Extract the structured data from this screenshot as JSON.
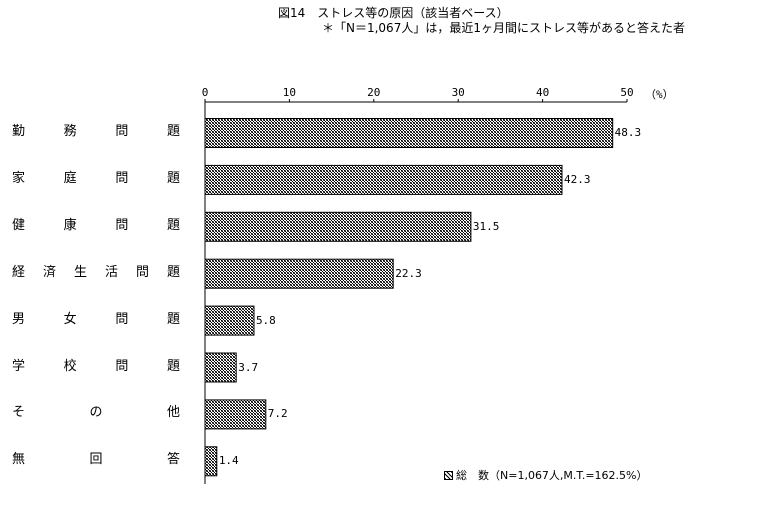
{
  "chart_data": {
    "type": "bar",
    "orientation": "horizontal",
    "title": "図14　ストレス等の原因（該当者ベース）",
    "subtitle": "＊「N＝1,067人」は，最近1ヶ月間にストレス等があると答えた者",
    "categories": [
      "勤務問題",
      "家庭問題",
      "健康問題",
      "経済生活問題",
      "男女問題",
      "学校問題",
      "その他",
      "無回答"
    ],
    "category_display": [
      "勤　務　問　題",
      "家　庭　問　題",
      "健　康　問　題",
      "経　済　生　活　問　題",
      "男　女　問　題",
      "学　校　問　題",
      "そ　　の　　他",
      "無　　回　　答"
    ],
    "series": [
      {
        "name": "総　数（N=1,067人,M.T.=162.5%）",
        "values": [
          48.3,
          42.3,
          31.5,
          22.3,
          5.8,
          3.7,
          7.2,
          1.4
        ]
      }
    ],
    "value_labels": [
      "48.3",
      "42.3",
      "31.5",
      "22.3",
      "5.8",
      "3.7",
      "7.2",
      "1.4"
    ],
    "xlim": [
      0,
      50
    ],
    "x_ticks": [
      "0",
      "10",
      "20",
      "30",
      "40",
      "50"
    ],
    "x_unit": "（%）",
    "axis_position": "top",
    "grid": false,
    "legend_position": "bottom-right",
    "bar_fill": "hatched"
  },
  "legend": {
    "label": "総　数（N=1,067人,M.T.=162.5%）"
  },
  "colors": {
    "bar_hatch": "#000000",
    "bar_background": "#ffffff",
    "axis": "#000000"
  }
}
